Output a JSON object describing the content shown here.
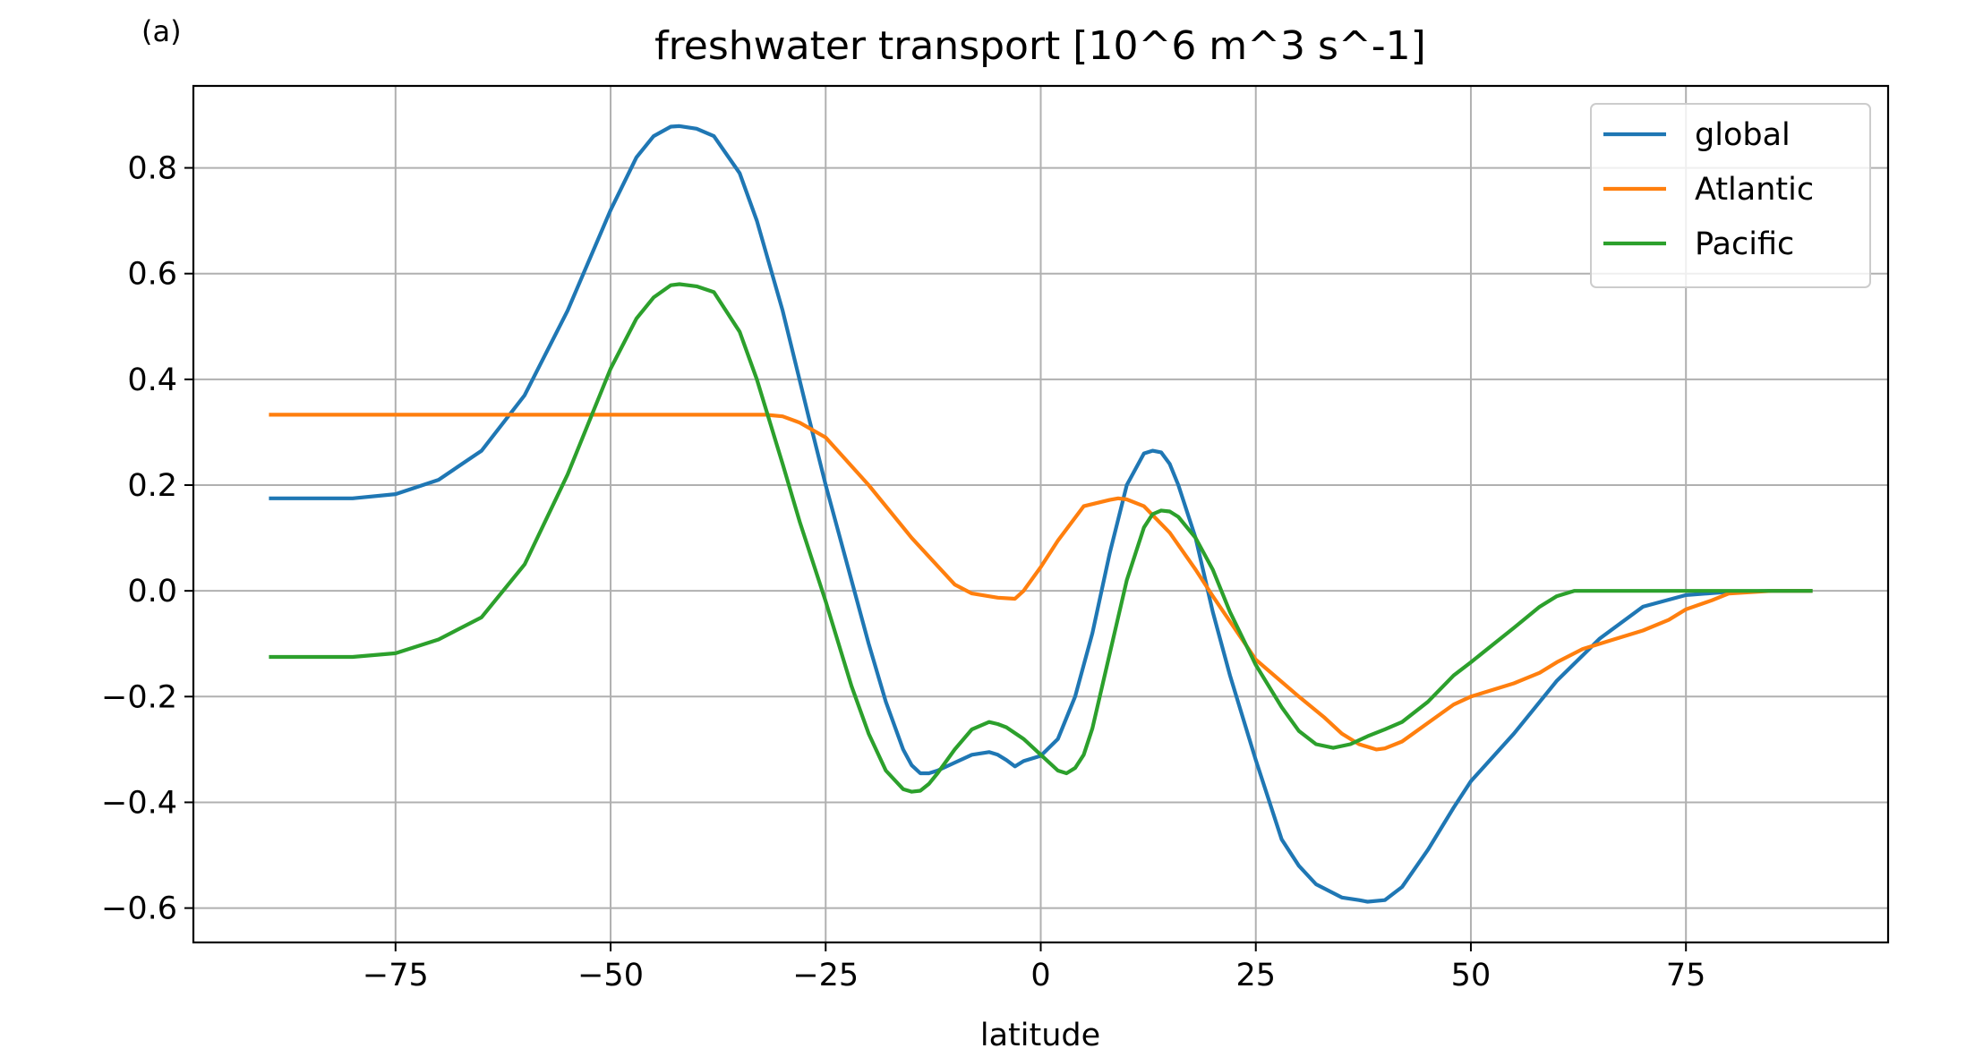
{
  "panel_label": "(a)",
  "chart_data": {
    "type": "line",
    "title": "freshwater transport [10^6 m^3 s^-1]",
    "xlabel": "latitude",
    "ylabel": "",
    "xlim": [
      -98.5,
      98.5
    ],
    "ylim": [
      -0.665,
      0.955
    ],
    "xticks": [
      -75,
      -50,
      -25,
      0,
      25,
      50,
      75
    ],
    "xtick_labels": [
      "−75",
      "−50",
      "−25",
      "0",
      "25",
      "50",
      "75"
    ],
    "yticks": [
      -0.6,
      -0.4,
      -0.2,
      0.0,
      0.2,
      0.4,
      0.6,
      0.8
    ],
    "ytick_labels": [
      "−0.6",
      "−0.4",
      "−0.2",
      "0.0",
      "0.2",
      "0.4",
      "0.6",
      "0.8"
    ],
    "grid": true,
    "legend_position": "top-right",
    "series": [
      {
        "name": "global",
        "color": "#1f77b4",
        "x": [
          -89.5,
          -85,
          -80,
          -75,
          -70,
          -65,
          -60,
          -55,
          -50,
          -47,
          -45,
          -43,
          -42,
          -40,
          -38,
          -35,
          -33,
          -30,
          -27,
          -25,
          -22,
          -20,
          -18,
          -16,
          -15,
          -14,
          -13,
          -12,
          -10,
          -8,
          -6,
          -5,
          -4,
          -3,
          -2,
          0,
          2,
          4,
          6,
          8,
          10,
          12,
          13,
          14,
          15,
          16,
          18,
          20,
          22,
          25,
          28,
          30,
          32,
          35,
          37,
          38,
          40,
          42,
          45,
          48,
          50,
          55,
          60,
          65,
          70,
          75,
          80,
          85,
          89.5
        ],
        "y": [
          0.175,
          0.175,
          0.175,
          0.183,
          0.21,
          0.265,
          0.37,
          0.53,
          0.72,
          0.82,
          0.86,
          0.878,
          0.879,
          0.874,
          0.86,
          0.79,
          0.7,
          0.53,
          0.33,
          0.2,
          0.02,
          -0.1,
          -0.21,
          -0.3,
          -0.33,
          -0.345,
          -0.345,
          -0.34,
          -0.325,
          -0.31,
          -0.305,
          -0.31,
          -0.32,
          -0.332,
          -0.322,
          -0.312,
          -0.28,
          -0.2,
          -0.08,
          0.07,
          0.2,
          0.26,
          0.265,
          0.262,
          0.24,
          0.2,
          0.1,
          -0.04,
          -0.16,
          -0.32,
          -0.47,
          -0.52,
          -0.555,
          -0.58,
          -0.585,
          -0.588,
          -0.585,
          -0.56,
          -0.49,
          -0.41,
          -0.36,
          -0.27,
          -0.17,
          -0.09,
          -0.03,
          -0.008,
          -0.002,
          0.0,
          0.0
        ]
      },
      {
        "name": "Atlantic",
        "color": "#ff7f0e",
        "x": [
          -89.5,
          -80,
          -70,
          -60,
          -50,
          -40,
          -35,
          -32,
          -30,
          -28,
          -25,
          -20,
          -15,
          -10,
          -8,
          -5,
          -3,
          -2,
          0,
          2,
          5,
          8,
          9,
          10,
          12,
          15,
          18,
          20,
          25,
          30,
          33,
          35,
          37,
          39,
          40,
          42,
          45,
          48,
          50,
          55,
          58,
          60,
          63,
          66,
          70,
          73,
          75,
          78,
          80,
          85,
          89.5
        ],
        "y": [
          0.333,
          0.333,
          0.333,
          0.333,
          0.333,
          0.333,
          0.333,
          0.333,
          0.33,
          0.318,
          0.29,
          0.2,
          0.1,
          0.012,
          -0.005,
          -0.013,
          -0.015,
          0.0,
          0.045,
          0.095,
          0.16,
          0.172,
          0.175,
          0.173,
          0.16,
          0.11,
          0.04,
          -0.01,
          -0.13,
          -0.2,
          -0.24,
          -0.27,
          -0.29,
          -0.3,
          -0.298,
          -0.285,
          -0.25,
          -0.215,
          -0.2,
          -0.175,
          -0.155,
          -0.135,
          -0.11,
          -0.095,
          -0.075,
          -0.055,
          -0.035,
          -0.018,
          -0.005,
          0.0,
          0.0
        ]
      },
      {
        "name": "Pacific",
        "color": "#2ca02c",
        "x": [
          -89.5,
          -85,
          -80,
          -75,
          -70,
          -65,
          -60,
          -55,
          -50,
          -47,
          -45,
          -43,
          -42,
          -40,
          -38,
          -35,
          -33,
          -30,
          -28,
          -25,
          -22,
          -20,
          -18,
          -16,
          -15,
          -14,
          -13,
          -12,
          -10,
          -8,
          -6,
          -5,
          -4,
          -2,
          0,
          2,
          3,
          4,
          5,
          6,
          8,
          10,
          12,
          13,
          14,
          15,
          16,
          18,
          20,
          22,
          25,
          28,
          30,
          32,
          34,
          36,
          38,
          40,
          42,
          45,
          48,
          50,
          55,
          58,
          60,
          62,
          65,
          70,
          75,
          80,
          85,
          89.5
        ],
        "y": [
          -0.125,
          -0.125,
          -0.125,
          -0.118,
          -0.092,
          -0.05,
          0.05,
          0.22,
          0.42,
          0.515,
          0.555,
          0.578,
          0.58,
          0.576,
          0.565,
          0.49,
          0.4,
          0.24,
          0.13,
          -0.02,
          -0.18,
          -0.27,
          -0.34,
          -0.375,
          -0.38,
          -0.378,
          -0.365,
          -0.345,
          -0.3,
          -0.262,
          -0.248,
          -0.252,
          -0.258,
          -0.28,
          -0.31,
          -0.34,
          -0.345,
          -0.335,
          -0.31,
          -0.26,
          -0.12,
          0.02,
          0.12,
          0.145,
          0.152,
          0.15,
          0.14,
          0.1,
          0.04,
          -0.04,
          -0.14,
          -0.22,
          -0.265,
          -0.29,
          -0.297,
          -0.29,
          -0.275,
          -0.262,
          -0.248,
          -0.21,
          -0.16,
          -0.135,
          -0.07,
          -0.03,
          -0.01,
          0.0,
          0.0,
          0.0,
          0.0,
          0.0,
          0.0,
          0.0
        ]
      }
    ]
  }
}
